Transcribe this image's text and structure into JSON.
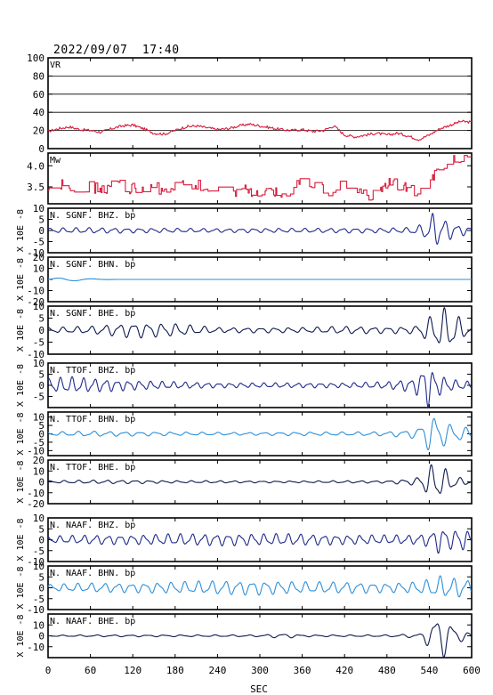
{
  "title": "2022/09/07  17:40",
  "chart_data": {
    "type": "line",
    "title": "2022/09/07  17:40",
    "xlabel": "SEC",
    "xlim": [
      0,
      600
    ],
    "xticks": [
      0,
      60,
      120,
      180,
      240,
      300,
      360,
      420,
      480,
      540,
      600
    ],
    "panels": [
      {
        "id": "vr",
        "label": "VR",
        "ylabel": "",
        "color": "#d81b3c",
        "ylim": [
          0,
          100
        ],
        "yticks": [
          0,
          20,
          40,
          60,
          80,
          100
        ],
        "grid_y": [
          20,
          40,
          60,
          80
        ],
        "kind": "vr",
        "x": [
          0,
          15,
          30,
          45,
          60,
          75,
          90,
          105,
          120,
          135,
          150,
          165,
          180,
          195,
          210,
          225,
          240,
          255,
          270,
          285,
          300,
          315,
          330,
          345,
          360,
          375,
          390,
          405,
          420,
          435,
          450,
          465,
          480,
          495,
          510,
          525,
          540,
          555,
          570,
          585,
          600
        ],
        "y": [
          19,
          22,
          24,
          21,
          20,
          18,
          22,
          25,
          26,
          22,
          17,
          16,
          20,
          24,
          25,
          23,
          21,
          22,
          25,
          27,
          25,
          23,
          21,
          20,
          21,
          19,
          20,
          25,
          15,
          13,
          15,
          17,
          15,
          17,
          14,
          10,
          15,
          22,
          26,
          30,
          29
        ]
      },
      {
        "id": "mw",
        "label": "Mw",
        "ylabel": "",
        "color": "#d81b3c",
        "ylim": [
          3.1,
          4.3
        ],
        "yticks": [
          3.5,
          4.0
        ],
        "grid_y": [],
        "kind": "mw",
        "x": [
          0,
          20,
          40,
          60,
          80,
          100,
          120,
          140,
          160,
          180,
          200,
          220,
          240,
          260,
          280,
          300,
          320,
          340,
          360,
          380,
          400,
          420,
          440,
          460,
          480,
          500,
          520,
          540,
          560,
          580,
          600
        ],
        "y": [
          3.45,
          3.55,
          3.4,
          3.5,
          3.45,
          3.55,
          3.45,
          3.5,
          3.45,
          3.55,
          3.6,
          3.5,
          3.45,
          3.4,
          3.45,
          3.3,
          3.35,
          3.4,
          3.65,
          3.5,
          3.4,
          3.55,
          3.35,
          3.3,
          3.6,
          3.55,
          3.35,
          3.7,
          3.95,
          4.2,
          4.25
        ]
      },
      {
        "id": "sgnf-bhz",
        "label": "N. SGNF. BHZ. bp",
        "ylabel": "X 10E -8",
        "color": "#1f2a8c",
        "ylim": [
          -10,
          10
        ],
        "yticks": [
          -10,
          -5,
          0,
          5,
          10
        ],
        "grid_y": [],
        "kind": "wave",
        "period": 18,
        "phase": 0.3,
        "x": [
          0,
          60,
          120,
          180,
          240,
          300,
          360,
          420,
          480,
          510,
          530,
          545,
          560,
          580,
          600
        ],
        "y": [
          1.0,
          1.2,
          1.0,
          0.9,
          0.8,
          0.9,
          0.9,
          1.0,
          1.0,
          1.2,
          2.5,
          7.5,
          5.0,
          2.5,
          1.5
        ]
      },
      {
        "id": "sgnf-bhn",
        "label": "N. SGNF. BHN. bp",
        "ylabel": "X 10E -8",
        "color": "#2e8fd8",
        "ylim": [
          -20,
          20
        ],
        "yticks": [
          -20,
          -10,
          0,
          10,
          20
        ],
        "grid_y": [],
        "kind": "flat",
        "x": [
          0,
          20,
          40,
          60,
          80,
          100,
          600
        ],
        "y": [
          0.5,
          1.5,
          1.2,
          0.6,
          0.2,
          0,
          0
        ]
      },
      {
        "id": "sgnf-bhe",
        "label": "N. SGNF. BHE. bp",
        "ylabel": "X 10E -8",
        "color": "#0d1a4f",
        "ylim": [
          -10,
          10
        ],
        "yticks": [
          -10,
          -5,
          0,
          5,
          10
        ],
        "grid_y": [],
        "kind": "wave",
        "period": 20,
        "phase": 1.1,
        "x": [
          0,
          60,
          120,
          180,
          240,
          300,
          360,
          420,
          480,
          520,
          545,
          560,
          575,
          590,
          600
        ],
        "y": [
          1.0,
          1.5,
          3.0,
          2.5,
          1.0,
          1.0,
          1.0,
          1.5,
          1.2,
          1.5,
          6.0,
          8.5,
          7.0,
          3.0,
          1.5
        ]
      },
      {
        "id": "ttof-bhz",
        "label": "N. TTOF. BHZ. bp",
        "ylabel": "X 10E -8",
        "color": "#1f2a8c",
        "ylim": [
          -10,
          10
        ],
        "yticks": [
          -5,
          0,
          5,
          10
        ],
        "grid_y": [],
        "kind": "wave",
        "period": 16,
        "phase": 0.8,
        "x": [
          0,
          30,
          60,
          120,
          180,
          240,
          300,
          360,
          420,
          480,
          520,
          535,
          550,
          570,
          600
        ],
        "y": [
          3.0,
          3.5,
          3.0,
          2.0,
          1.5,
          1.0,
          1.0,
          1.0,
          1.0,
          1.5,
          3.0,
          10.0,
          5.0,
          2.5,
          1.5
        ]
      },
      {
        "id": "ttof-bhn",
        "label": "N. TTOF. BHN. bp",
        "ylabel": "X 10E -8",
        "color": "#2e8fd8",
        "ylim": [
          -13,
          13
        ],
        "yticks": [
          -10,
          -5,
          0,
          5,
          10
        ],
        "grid_y": [],
        "kind": "wave",
        "period": 22,
        "phase": 2.0,
        "x": [
          0,
          60,
          120,
          180,
          240,
          300,
          360,
          420,
          480,
          520,
          535,
          548,
          565,
          585,
          600
        ],
        "y": [
          1.0,
          1.5,
          1.2,
          1.0,
          0.8,
          0.8,
          1.0,
          1.0,
          1.2,
          2.5,
          8.0,
          11.0,
          6.0,
          4.0,
          3.0
        ]
      },
      {
        "id": "ttof-bhe",
        "label": "N. TTOF. BHE. bp",
        "ylabel": "X 10E -8",
        "color": "#0d1a4f",
        "ylim": [
          -20,
          20
        ],
        "yticks": [
          -20,
          -10,
          0,
          10,
          20
        ],
        "grid_y": [],
        "kind": "wave",
        "period": 20,
        "phase": 0.5,
        "x": [
          0,
          60,
          120,
          180,
          240,
          300,
          360,
          420,
          480,
          520,
          535,
          548,
          560,
          580,
          600
        ],
        "y": [
          1.0,
          1.5,
          1.5,
          1.0,
          1.0,
          0.8,
          0.8,
          1.0,
          1.0,
          3.0,
          10.0,
          18.0,
          12.0,
          4.0,
          2.0
        ]
      },
      {
        "id": "naaf-bhz",
        "label": "N. NAAF. BHZ. bp",
        "ylabel": "X 10E -8",
        "color": "#1f2a8c",
        "ylim": [
          -10,
          10
        ],
        "yticks": [
          -10,
          -5,
          0,
          5,
          10
        ],
        "grid_y": [],
        "kind": "wave",
        "period": 17,
        "phase": 1.5,
        "x": [
          0,
          60,
          120,
          180,
          240,
          300,
          360,
          420,
          480,
          520,
          540,
          555,
          570,
          585,
          600
        ],
        "y": [
          1.5,
          2.0,
          2.0,
          2.5,
          2.5,
          2.5,
          2.5,
          2.0,
          2.0,
          2.0,
          3.0,
          6.0,
          4.0,
          5.0,
          3.0
        ]
      },
      {
        "id": "naaf-bhn",
        "label": "N. NAAF. BHN. bp",
        "ylabel": "X 10E -8",
        "color": "#2e8fd8",
        "ylim": [
          -10,
          10
        ],
        "yticks": [
          -10,
          -5,
          0,
          5,
          10
        ],
        "grid_y": [],
        "kind": "wave",
        "period": 19,
        "phase": 0.2,
        "x": [
          0,
          60,
          120,
          180,
          240,
          300,
          360,
          420,
          480,
          520,
          540,
          555,
          570,
          585,
          600
        ],
        "y": [
          1.5,
          2.0,
          2.0,
          2.5,
          3.0,
          3.0,
          2.5,
          2.5,
          2.0,
          2.5,
          3.5,
          5.0,
          4.0,
          4.5,
          3.0
        ]
      },
      {
        "id": "naaf-bhe",
        "label": "N. NAAF. BHE. bp",
        "ylabel": "X 10E -8",
        "color": "#0d1a4f",
        "ylim": [
          -20,
          20
        ],
        "yticks": [
          -10,
          0,
          10
        ],
        "grid_y": [],
        "kind": "wave",
        "period": 24,
        "phase": 2.4,
        "x": [
          0,
          60,
          120,
          180,
          240,
          300,
          330,
          350,
          360,
          420,
          480,
          530,
          545,
          560,
          580,
          600
        ],
        "y": [
          0.5,
          0.8,
          0.8,
          0.8,
          0.8,
          0.8,
          2.0,
          1.5,
          0.8,
          0.8,
          0.8,
          2.0,
          16.0,
          18.0,
          6.0,
          2.0
        ]
      }
    ]
  }
}
